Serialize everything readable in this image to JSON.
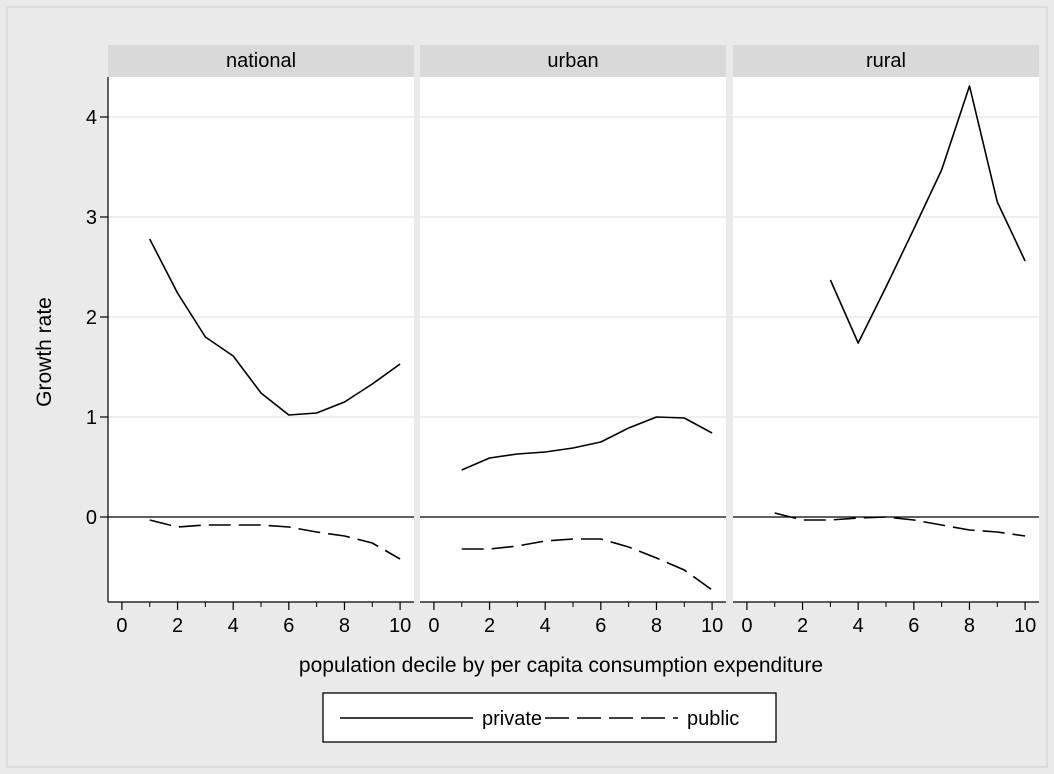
{
  "chart_data": {
    "type": "line",
    "xlabel": "population decile by per capita consumption expenditure",
    "ylabel": "Growth rate",
    "xlim": [
      -0.5,
      10.5
    ],
    "ylim": [
      -0.85,
      4.4
    ],
    "x_ticks": [
      0,
      2,
      4,
      6,
      8,
      10
    ],
    "y_ticks": [
      0,
      1,
      2,
      3,
      4
    ],
    "grid": true,
    "zero_line": true,
    "legend_position": "bottom",
    "legend": [
      {
        "name": "private",
        "style": "solid"
      },
      {
        "name": "public",
        "style": "dashed"
      }
    ],
    "panels": [
      {
        "title": "national",
        "series": [
          {
            "name": "private",
            "x": [
              1,
              2,
              3,
              4,
              5,
              6,
              7,
              8,
              9,
              10
            ],
            "values": [
              2.78,
              2.24,
              1.8,
              1.61,
              1.24,
              1.02,
              1.04,
              1.15,
              1.33,
              1.53
            ]
          },
          {
            "name": "public",
            "x": [
              1,
              2,
              3,
              4,
              5,
              6,
              7,
              8,
              9,
              10
            ],
            "values": [
              -0.03,
              -0.1,
              -0.08,
              -0.08,
              -0.08,
              -0.1,
              -0.15,
              -0.19,
              -0.26,
              -0.42
            ]
          }
        ]
      },
      {
        "title": "urban",
        "series": [
          {
            "name": "private",
            "x": [
              1,
              2,
              3,
              4,
              5,
              6,
              7,
              8,
              9,
              10
            ],
            "values": [
              0.47,
              0.59,
              0.63,
              0.65,
              0.69,
              0.75,
              0.89,
              1.0,
              0.99,
              0.84
            ]
          },
          {
            "name": "public",
            "x": [
              1,
              2,
              3,
              4,
              5,
              6,
              7,
              8,
              9,
              10
            ],
            "values": [
              -0.32,
              -0.32,
              -0.29,
              -0.24,
              -0.22,
              -0.22,
              -0.3,
              -0.41,
              -0.53,
              -0.73
            ]
          }
        ]
      },
      {
        "title": "rural",
        "series": [
          {
            "name": "private",
            "x": [
              3,
              4,
              5,
              6,
              7,
              8,
              9,
              10
            ],
            "values": [
              2.37,
              1.74,
              2.3,
              2.88,
              3.47,
              4.31,
              3.15,
              2.56
            ]
          },
          {
            "name": "public",
            "x": [
              1,
              2,
              3,
              4,
              5,
              6,
              7,
              8,
              9,
              10
            ],
            "values": [
              0.04,
              -0.03,
              -0.03,
              -0.01,
              0.0,
              -0.03,
              -0.08,
              -0.13,
              -0.15,
              -0.19
            ]
          }
        ]
      }
    ]
  }
}
